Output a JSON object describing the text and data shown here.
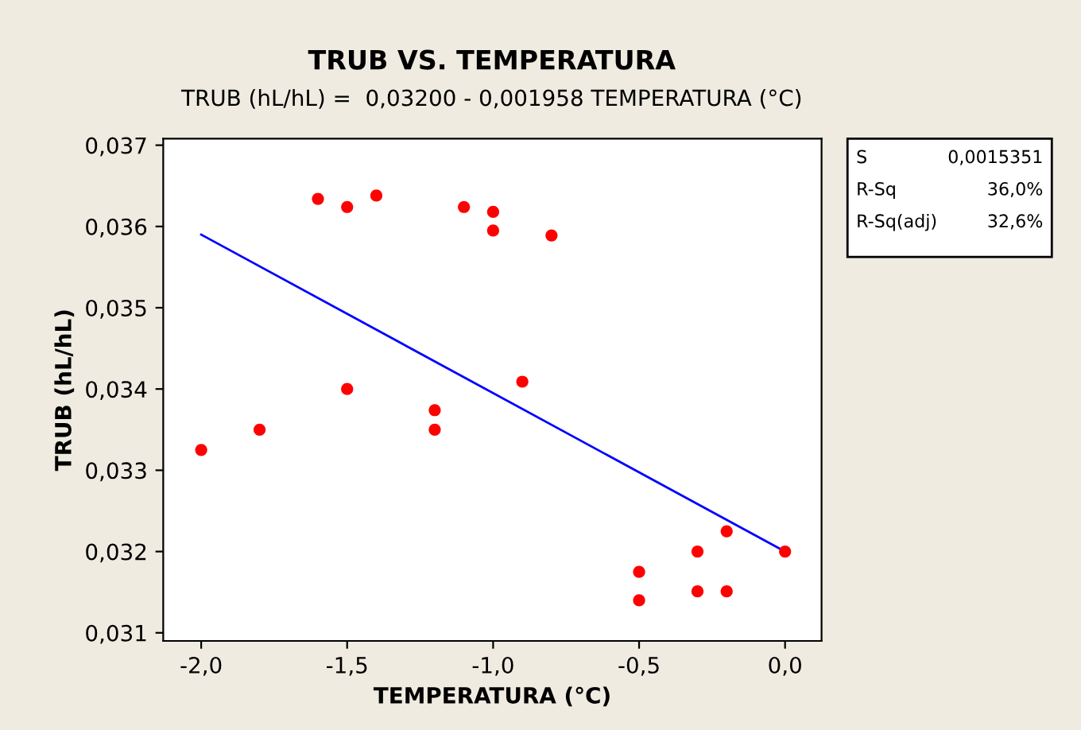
{
  "chart_data": {
    "type": "scatter",
    "title": "TRUB VS. TEMPERATURA",
    "subtitle": "TRUB (hL/hL) =  0,03200 - 0,001958 TEMPERATURA (°C)",
    "xlabel": "TEMPERATURA (°C)",
    "ylabel": "TRUB (hL/hL)",
    "grid": false,
    "legend": false,
    "series": [
      {
        "marker": "circle",
        "color": "#ff0000",
        "x": [
          -2.0,
          -1.8,
          -1.6,
          -1.5,
          -1.4,
          -1.5,
          -1.2,
          -1.2,
          -1.1,
          -1.0,
          -1.0,
          -0.8,
          -0.9,
          -0.5,
          -0.5,
          -0.3,
          -0.3,
          -0.2,
          -0.2,
          0.0
        ],
        "values": [
          0.03325,
          0.0335,
          0.03634,
          0.03624,
          0.03638,
          0.034,
          0.03374,
          0.0335,
          0.03624,
          0.03618,
          0.03595,
          0.03589,
          0.03409,
          0.03175,
          0.0314,
          0.032,
          0.03151,
          0.03225,
          0.03151,
          0.032
        ]
      },
      {
        "type": "line",
        "color": "#0000ff",
        "x": [
          -2.0,
          0.0
        ],
        "values": [
          0.0359,
          0.032
        ]
      }
    ],
    "xlim": [
      -2.13,
      0.125
    ],
    "ylim": [
      0.0309,
      0.03708
    ],
    "xticks": [
      {
        "value": -2.0,
        "label": "-2,0"
      },
      {
        "value": -1.5,
        "label": "-1,5"
      },
      {
        "value": -1.0,
        "label": "-1,0"
      },
      {
        "value": -0.5,
        "label": "-0,5"
      },
      {
        "value": 0.0,
        "label": "0,0"
      }
    ],
    "yticks": [
      {
        "value": 0.031,
        "label": "0,031"
      },
      {
        "value": 0.032,
        "label": "0,032"
      },
      {
        "value": 0.033,
        "label": "0,033"
      },
      {
        "value": 0.034,
        "label": "0,034"
      },
      {
        "value": 0.035,
        "label": "0,035"
      },
      {
        "value": 0.036,
        "label": "0,036"
      },
      {
        "value": 0.037,
        "label": "0,037"
      }
    ],
    "annotations": [
      "S",
      "0,0015351",
      "R-Sq",
      "36,0%",
      "R-Sq(adj)",
      "32,6%"
    ]
  }
}
